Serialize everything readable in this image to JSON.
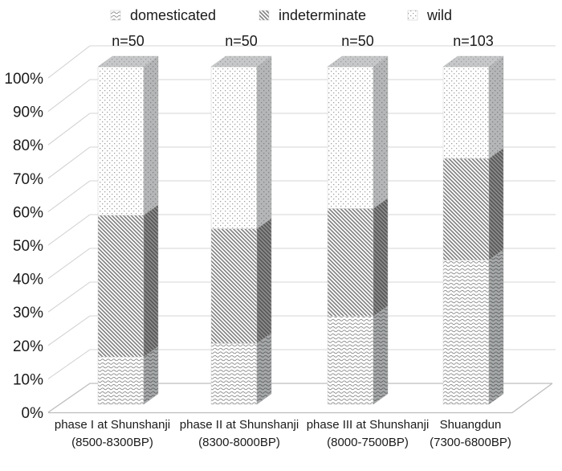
{
  "chart_data": {
    "type": "bar",
    "subtype": "100%-stacked-3d-column",
    "title": "",
    "xlabel": "",
    "ylabel": "",
    "ylim": [
      0,
      100
    ],
    "grid": true,
    "legend_position": "top",
    "categories": [
      "phase I at Shunshanji",
      "phase II at Shunshanji",
      "phase III at Shunshanji",
      "Shuangdun"
    ],
    "category_sublabels": [
      "(8500-8300BP)",
      "(8300-8000BP)",
      "(8000-7500BP)",
      "(7300-6800BP)"
    ],
    "bar_annotations": [
      "n=50",
      "n=50",
      "n=50",
      "n=103"
    ],
    "ytick_labels": [
      "0%",
      "10%",
      "20%",
      "30%",
      "40%",
      "50%",
      "60%",
      "70%",
      "80%",
      "90%",
      "100%"
    ],
    "series": [
      {
        "name": "domesticated",
        "pattern": "horizontal-waves",
        "values": [
          14,
          18,
          26,
          42.7
        ]
      },
      {
        "name": "indeterminate",
        "pattern": "diagonal-hatch",
        "values": [
          42,
          34,
          32,
          30.1
        ]
      },
      {
        "name": "wild",
        "pattern": "dots",
        "values": [
          44,
          48,
          42,
          27.2
        ]
      }
    ],
    "colors": {
      "text": "#1a1a1a",
      "grid_line": "#d4d4d4",
      "axis_line": "#bdbdbd",
      "pattern_ink": "#8a8a8a"
    }
  }
}
